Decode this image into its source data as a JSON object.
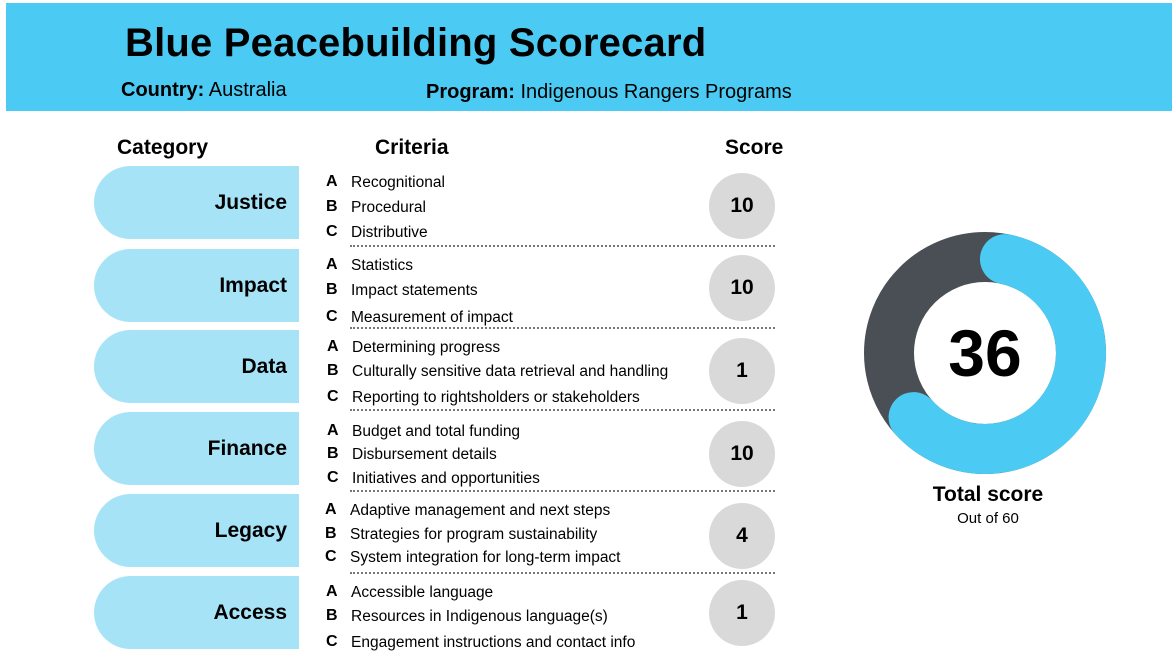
{
  "header": {
    "title": "Blue Peacebuilding Scorecard",
    "country_label": "Country:",
    "country_value": "Australia",
    "program_label": "Program:",
    "program_value": "Indigenous Rangers Programs"
  },
  "columns": {
    "category": "Category",
    "criteria": "Criteria",
    "score": "Score"
  },
  "categories": [
    {
      "name": "Justice",
      "score": "10",
      "criteria": [
        {
          "letter": "A",
          "text": "Recognitional"
        },
        {
          "letter": "B",
          "text": "Procedural"
        },
        {
          "letter": "C",
          "text": "Distributive"
        }
      ]
    },
    {
      "name": "Impact",
      "score": "10",
      "criteria": [
        {
          "letter": "A",
          "text": "Statistics"
        },
        {
          "letter": "B",
          "text": "Impact statements"
        },
        {
          "letter": "C",
          "text": "Measurement of impact"
        }
      ]
    },
    {
      "name": "Data",
      "score": "1",
      "criteria": [
        {
          "letter": "A",
          "text": "Determining progress"
        },
        {
          "letter": "B",
          "text": "Culturally sensitive data retrieval and handling"
        },
        {
          "letter": "C",
          "text": "Reporting to rightsholders or stakeholders"
        }
      ]
    },
    {
      "name": "Finance",
      "score": "10",
      "criteria": [
        {
          "letter": "A",
          "text": "Budget and total funding"
        },
        {
          "letter": "B",
          "text": "Disbursement details"
        },
        {
          "letter": "C",
          "text": "Initiatives and opportunities"
        }
      ]
    },
    {
      "name": "Legacy",
      "score": "4",
      "criteria": [
        {
          "letter": "A",
          "text": "Adaptive management and next steps"
        },
        {
          "letter": "B",
          "text": "Strategies for program sustainability"
        },
        {
          "letter": "C",
          "text": "System integration for long-term impact"
        }
      ]
    },
    {
      "name": "Access",
      "score": "1",
      "criteria": [
        {
          "letter": "A",
          "text": "Accessible language"
        },
        {
          "letter": "B",
          "text": "Resources in Indigenous language(s)"
        },
        {
          "letter": "C",
          "text": "Engagement instructions and contact info"
        }
      ]
    }
  ],
  "total": {
    "value": "36",
    "max": 60,
    "label": "Total score",
    "sublabel": "Out of 60"
  },
  "colors": {
    "banner": "#4bcbf3",
    "pill": "#a6e3f7",
    "score_circle": "#d9d9d9",
    "donut_filled": "#4bcbf3",
    "donut_remaining": "#4a4f55"
  },
  "icons": [
    "score-donut-chart"
  ]
}
